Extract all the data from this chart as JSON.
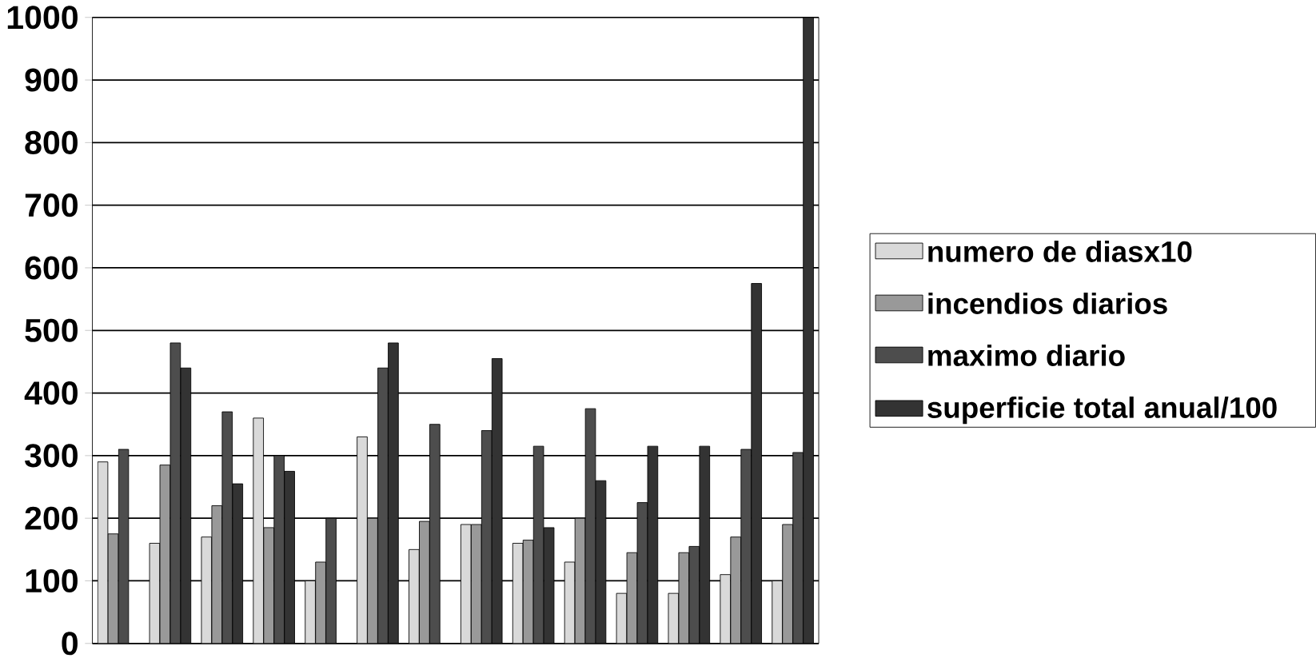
{
  "chart_data": {
    "type": "bar",
    "categories": [
      null,
      null,
      null,
      null,
      null,
      null,
      null,
      null,
      null,
      null,
      null,
      null,
      null,
      null
    ],
    "series": [
      {
        "name": "numero de diasx10",
        "color": "#d9d9d9",
        "values": [
          290,
          160,
          170,
          360,
          100,
          330,
          150,
          190,
          160,
          130,
          80,
          80,
          110,
          100
        ]
      },
      {
        "name": "incendios diarios",
        "color": "#999999",
        "values": [
          175,
          285,
          220,
          185,
          130,
          200,
          195,
          190,
          165,
          200,
          145,
          145,
          170,
          190
        ]
      },
      {
        "name": "maximo diario",
        "color": "#4d4d4d",
        "values": [
          310,
          480,
          370,
          300,
          200,
          440,
          350,
          340,
          315,
          375,
          225,
          155,
          310,
          305
        ]
      },
      {
        "name": "superficie total anual/100",
        "color": "#333333",
        "values": [
          null,
          440,
          255,
          275,
          null,
          480,
          null,
          455,
          185,
          260,
          315,
          315,
          575,
          1000
        ]
      }
    ],
    "ylim": [
      0,
      1000
    ],
    "yticks": [
      0,
      100,
      200,
      300,
      400,
      500,
      600,
      700,
      800,
      900,
      1000
    ],
    "grid": "y",
    "legend": "right"
  }
}
